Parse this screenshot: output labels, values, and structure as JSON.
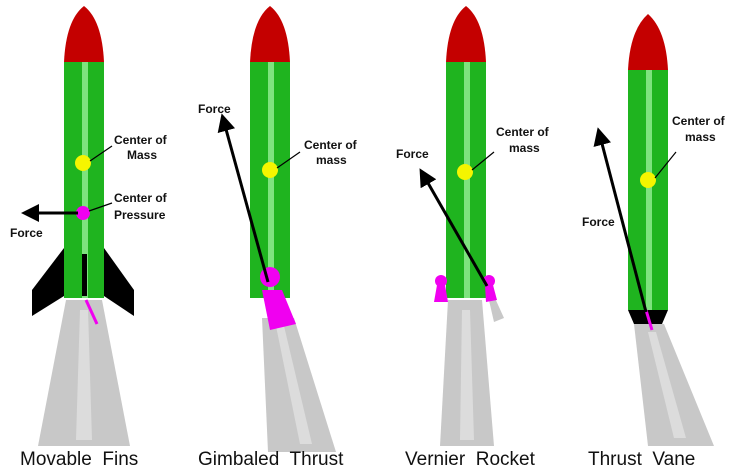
{
  "colors": {
    "nose": "#c40000",
    "body": "#1fb41f",
    "fin": "#000000",
    "marker_mass": "#f5f500",
    "marker_pressure": "#f000f0",
    "exhaust": "#c8c8c8",
    "arrow": "#000000"
  },
  "panels": [
    {
      "caption": "Movable  Fins",
      "labels": {
        "mass_1": "Center of",
        "mass_2": "Mass",
        "pressure_1": "Center of",
        "pressure_2": "Pressure",
        "force": "Force"
      }
    },
    {
      "caption": "Gimbaled  Thrust",
      "labels": {
        "mass_1": "Center of",
        "mass_2": "mass",
        "force": "Force"
      }
    },
    {
      "caption": "Vernier  Rocket",
      "labels": {
        "mass_1": "Center of",
        "mass_2": "mass",
        "force": "Force"
      }
    },
    {
      "caption": "Thrust  Vane",
      "labels": {
        "mass_1": "Center of",
        "mass_2": "mass",
        "force": "Force"
      }
    }
  ]
}
